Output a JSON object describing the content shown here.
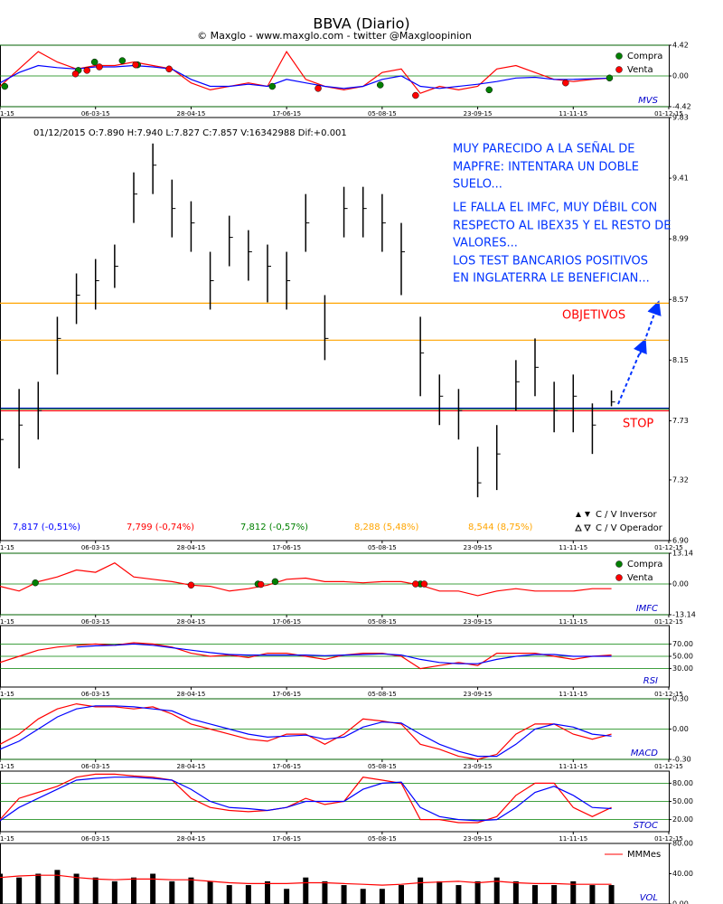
{
  "header": {
    "title": "BBVA (Diario)",
    "subtitle": "© Maxglo - www.maxglo.com - twitter @Maxgloopinion"
  },
  "x_axis": {
    "xlim": [
      0,
      70
    ],
    "xticks": [
      {
        "value": 0,
        "label": "1-15"
      },
      {
        "value": 10,
        "label": "06-03-15"
      },
      {
        "value": 20,
        "label": "28-04-15"
      },
      {
        "value": 30,
        "label": "17-06-15"
      },
      {
        "value": 40,
        "label": "05-08-15"
      },
      {
        "value": 50,
        "label": "23-09-15"
      },
      {
        "value": 60,
        "label": "11-11-15"
      },
      {
        "value": 70,
        "label": "01-12-15"
      }
    ],
    "x": [
      0,
      2,
      4,
      6,
      8,
      10,
      12,
      14,
      16,
      18,
      20,
      22,
      24,
      26,
      28,
      30,
      32,
      34,
      36,
      38,
      40,
      42,
      44,
      46,
      48,
      50,
      52,
      54,
      56,
      58,
      60,
      62,
      64
    ]
  },
  "chart_data": [
    {
      "type": "line",
      "label": "MVS",
      "ylim": [
        -4.42,
        4.42
      ],
      "yticks": [
        -4.42,
        {
          "value": 0,
          "label": "0.00"
        },
        4.42
      ],
      "grid": true,
      "grid_color": "#008000",
      "series": [
        {
          "color": "#ff0000",
          "values": [
            -1.5,
            1,
            3.5,
            2,
            1,
            1.5,
            1.5,
            2,
            1.5,
            1,
            -1,
            -2,
            -1.5,
            -1,
            -1.5,
            3.5,
            -0.5,
            -1.5,
            -2,
            -1.5,
            0.5,
            1,
            -2.5,
            -1.5,
            -2,
            -1.5,
            1,
            1.5,
            0.5,
            -0.5,
            -0.8,
            -0.5,
            -0.3
          ]
        },
        {
          "color": "#0000ff",
          "values": [
            -1,
            0.5,
            1.5,
            1.2,
            1,
            1.3,
            1.3,
            1.5,
            1.3,
            1,
            -0.5,
            -1.5,
            -1.5,
            -1.2,
            -1.5,
            -0.5,
            -1,
            -1.5,
            -1.8,
            -1.5,
            -0.5,
            0,
            -1.5,
            -1.8,
            -1.5,
            -1.2,
            -0.8,
            -0.3,
            -0.2,
            -0.5,
            -0.5,
            -0.4,
            -0.3
          ]
        }
      ],
      "markers": [
        {
          "name": "Compra",
          "color": "#008000",
          "x": [
            0.5,
            8.2,
            9.9,
            12.8,
            14.4,
            28.5,
            39.8,
            51.2,
            63.8
          ],
          "values": [
            -1.5,
            0.8,
            2,
            2.2,
            1.6,
            -1.5,
            -1.3,
            -2,
            -0.3
          ]
        },
        {
          "name": "Venta",
          "color": "#ff0000",
          "x": [
            7.9,
            9.1,
            10.4,
            14.2,
            17.7,
            33.3,
            43.5,
            59.2
          ],
          "values": [
            0.3,
            0.8,
            1.3,
            1.6,
            1,
            -1.8,
            -2.8,
            -1
          ]
        }
      ]
    },
    {
      "type": "ohlc",
      "info": "01/12/2015   O:7.890   H:7.940   L:7.827   C:7.857   V:16342988   Dif:+0.001",
      "ylim": [
        6.9,
        9.83
      ],
      "yticks": [
        {
          "value": 6.9,
          "label": "6.90"
        },
        7.32,
        7.73,
        8.15,
        8.57,
        8.99,
        9.41,
        9.83
      ],
      "grid": false,
      "high": [
        7.85,
        7.95,
        8.0,
        8.45,
        8.75,
        8.85,
        8.95,
        9.45,
        9.65,
        9.4,
        9.25,
        8.9,
        9.15,
        9.05,
        8.95,
        8.9,
        9.3,
        8.6,
        9.35,
        9.35,
        9.3,
        9.1,
        8.45,
        8.05,
        7.95,
        7.55,
        7.7,
        8.15,
        8.3,
        8.0,
        8.05,
        7.85,
        7.94
      ],
      "low": [
        7.15,
        7.4,
        7.6,
        8.05,
        8.4,
        8.5,
        8.65,
        9.1,
        9.3,
        9.0,
        8.9,
        8.5,
        8.8,
        8.7,
        8.55,
        8.5,
        8.9,
        8.15,
        9.0,
        9.0,
        8.9,
        8.6,
        7.9,
        7.7,
        7.6,
        7.2,
        7.25,
        7.8,
        7.9,
        7.65,
        7.65,
        7.5,
        7.83
      ],
      "close": [
        7.6,
        7.7,
        7.8,
        8.3,
        8.6,
        8.7,
        8.8,
        9.3,
        9.5,
        9.2,
        9.1,
        8.7,
        9.0,
        8.9,
        8.8,
        8.7,
        9.1,
        8.3,
        9.2,
        9.2,
        9.1,
        8.9,
        8.2,
        7.9,
        7.8,
        7.3,
        7.5,
        8.0,
        8.1,
        7.8,
        7.9,
        7.7,
        7.86
      ],
      "levels": [
        {
          "value": 7.817,
          "label": "7,817 (-0,51%)",
          "color": "#0000ff"
        },
        {
          "value": 7.799,
          "label": "7,799 (-0,74%)",
          "color": "#ff0000"
        },
        {
          "value": 7.812,
          "label": "7,812 (-0,57%)",
          "color": "#008000"
        },
        {
          "value": 8.288,
          "label": "8,288 (5,48%)",
          "color": "#ffa500"
        },
        {
          "value": 8.544,
          "label": "8,544 (8,75%)",
          "color": "#ffa500"
        }
      ],
      "annotations": [
        "MUY PARECIDO A LA SEÑAL DE",
        "MAPFRE: INTENTARA UN DOBLE",
        "SUELO...",
        "LE FALLA EL IMFC, MUY DÉBIL CON",
        "RESPECTO AL IBEX35 Y EL RESTO DE",
        "VALORES...",
        "LOS TEST BANCARIOS POSITIVOS",
        "EN INGLATERRA LE BENEFICIAN..."
      ],
      "annotation_color": "#0033ff",
      "target_label": "OBJETIVOS",
      "stop_label": "STOP",
      "legend_labels": [
        "C / V Inversor",
        "C / V Operador"
      ]
    },
    {
      "type": "line",
      "label": "IMFC",
      "ylim": [
        -13.14,
        13.14
      ],
      "yticks": [
        -13.14,
        {
          "value": 0,
          "label": "0.00"
        },
        13.14
      ],
      "grid": true,
      "grid_color": "#008000",
      "series": [
        {
          "color": "#ff0000",
          "values": [
            -1,
            -3,
            1,
            3,
            6,
            5,
            9,
            3,
            2,
            1,
            -0.5,
            -1,
            -3,
            -2,
            -0.5,
            2,
            2.5,
            1,
            1,
            0.5,
            1,
            1,
            -0.5,
            -3,
            -3,
            -5,
            -3,
            -2,
            -3,
            -3,
            -3,
            -2,
            -2
          ]
        }
      ],
      "markers": [
        {
          "name": "Compra",
          "color": "#008000",
          "x": [
            3.7,
            27,
            28.8,
            44
          ],
          "values": [
            0.5,
            0,
            1,
            0
          ]
        },
        {
          "name": "Venta",
          "color": "#ff0000",
          "x": [
            20,
            27.3,
            43.5,
            44.4
          ],
          "values": [
            -0.5,
            -0.2,
            0,
            0
          ]
        }
      ]
    },
    {
      "type": "line",
      "label": "RSI",
      "ylim": [
        0,
        100
      ],
      "yticks": [
        {
          "value": 30,
          "label": "30.00"
        },
        {
          "value": 50,
          "label": "50.00"
        },
        {
          "value": 70,
          "label": "70.00"
        }
      ],
      "grid": true,
      "grid_color": "#008000",
      "series": [
        {
          "color": "#ff0000",
          "values": [
            40,
            50,
            60,
            65,
            68,
            70,
            68,
            72,
            70,
            65,
            55,
            50,
            52,
            48,
            55,
            55,
            50,
            45,
            52,
            55,
            55,
            50,
            30,
            35,
            40,
            35,
            55,
            55,
            55,
            50,
            45,
            50,
            52
          ]
        },
        {
          "color": "#0000ff",
          "values": [
            null,
            null,
            null,
            null,
            65,
            67,
            68,
            70,
            68,
            64,
            60,
            56,
            53,
            52,
            52,
            52,
            52,
            51,
            52,
            53,
            54,
            52,
            45,
            40,
            38,
            38,
            45,
            50,
            53,
            53,
            50,
            50,
            50
          ]
        }
      ]
    },
    {
      "type": "line",
      "label": "MACD",
      "ylim": [
        -0.3,
        0.3
      ],
      "yticks": [
        {
          "value": -0.3,
          "label": "-0.30"
        },
        {
          "value": 0,
          "label": "0.00"
        },
        {
          "value": 0.3,
          "label": "0.30"
        }
      ],
      "grid": true,
      "grid_color": "#008000",
      "series": [
        {
          "color": "#ff0000",
          "values": [
            -0.15,
            -0.05,
            0.1,
            0.2,
            0.25,
            0.22,
            0.22,
            0.2,
            0.22,
            0.15,
            0.05,
            0,
            -0.05,
            -0.1,
            -0.12,
            -0.05,
            -0.05,
            -0.15,
            -0.05,
            0.1,
            0.08,
            0.05,
            -0.15,
            -0.2,
            -0.27,
            -0.3,
            -0.25,
            -0.05,
            0.05,
            0.05,
            -0.05,
            -0.1,
            -0.05
          ]
        },
        {
          "color": "#0000ff",
          "values": [
            -0.2,
            -0.12,
            0,
            0.12,
            0.2,
            0.23,
            0.23,
            0.22,
            0.2,
            0.18,
            0.1,
            0.05,
            0,
            -0.05,
            -0.08,
            -0.07,
            -0.06,
            -0.1,
            -0.08,
            0.02,
            0.07,
            0.06,
            -0.05,
            -0.15,
            -0.22,
            -0.27,
            -0.27,
            -0.15,
            0,
            0.05,
            0.02,
            -0.05,
            -0.07
          ]
        }
      ]
    },
    {
      "type": "line",
      "label": "STOC",
      "ylim": [
        0,
        100
      ],
      "yticks": [
        {
          "value": 20,
          "label": "20.00"
        },
        {
          "value": 50,
          "label": "50.00"
        },
        {
          "value": 80,
          "label": "80.00"
        }
      ],
      "grid": true,
      "grid_color": "#008000",
      "series": [
        {
          "color": "#ff0000",
          "values": [
            20,
            55,
            65,
            75,
            90,
            95,
            95,
            92,
            90,
            85,
            55,
            40,
            35,
            33,
            35,
            40,
            55,
            45,
            50,
            90,
            85,
            80,
            20,
            20,
            15,
            15,
            25,
            60,
            80,
            80,
            40,
            25,
            40
          ]
        },
        {
          "color": "#0000ff",
          "values": [
            18,
            40,
            55,
            70,
            85,
            88,
            90,
            90,
            88,
            85,
            70,
            50,
            40,
            38,
            35,
            40,
            50,
            50,
            50,
            70,
            80,
            82,
            40,
            25,
            20,
            18,
            20,
            40,
            65,
            75,
            60,
            40,
            38
          ]
        }
      ]
    },
    {
      "type": "volume",
      "label": "VOL",
      "ylim": [
        0,
        80
      ],
      "yticks": [
        {
          "value": 0,
          "label": "0.00"
        },
        {
          "value": 40,
          "label": "40.00"
        },
        {
          "value": 80,
          "label": "80.00"
        }
      ],
      "grid": false,
      "values": [
        40,
        35,
        40,
        45,
        40,
        35,
        30,
        35,
        40,
        30,
        35,
        30,
        25,
        25,
        30,
        20,
        35,
        30,
        25,
        20,
        20,
        25,
        35,
        30,
        25,
        30,
        35,
        30,
        25,
        25,
        30,
        25,
        25
      ],
      "color": "#000000",
      "series": [
        {
          "name": "MMMes",
          "color": "#ff0000",
          "values": [
            35,
            37,
            38,
            38,
            35,
            33,
            32,
            33,
            33,
            32,
            32,
            30,
            28,
            27,
            27,
            27,
            28,
            28,
            27,
            26,
            25,
            26,
            28,
            29,
            30,
            28,
            30,
            28,
            27,
            27,
            26,
            26,
            26
          ]
        }
      ]
    }
  ]
}
